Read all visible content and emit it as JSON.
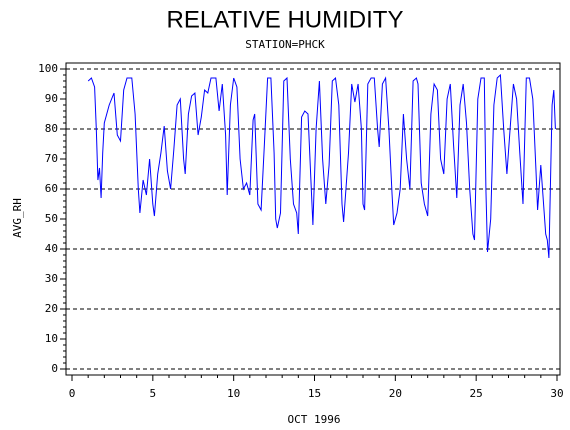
{
  "chart_data": {
    "type": "line",
    "title": "RELATIVE HUMIDITY",
    "subtitle": "STATION=PHCK",
    "x_label": "OCT 1996",
    "y_label": "AVG_RH",
    "x": [
      1.0,
      1.2,
      1.4,
      1.5,
      1.6,
      1.7,
      1.8,
      1.9,
      2.0,
      2.3,
      2.6,
      2.8,
      3.0,
      3.2,
      3.4,
      3.7,
      3.9,
      4.1,
      4.2,
      4.4,
      4.6,
      4.8,
      5.0,
      5.1,
      5.3,
      5.5,
      5.7,
      5.9,
      6.1,
      6.3,
      6.5,
      6.7,
      6.9,
      7.0,
      7.2,
      7.4,
      7.6,
      7.8,
      8.0,
      8.2,
      8.4,
      8.6,
      8.9,
      9.1,
      9.3,
      9.5,
      9.6,
      9.8,
      10.0,
      10.2,
      10.4,
      10.6,
      10.8,
      11.0,
      11.2,
      11.3,
      11.5,
      11.7,
      11.9,
      12.1,
      12.3,
      12.5,
      12.6,
      12.7,
      12.9,
      13.1,
      13.3,
      13.5,
      13.7,
      13.9,
      14.0,
      14.2,
      14.4,
      14.6,
      14.8,
      14.9,
      15.1,
      15.3,
      15.5,
      15.7,
      15.9,
      16.1,
      16.3,
      16.5,
      16.7,
      16.8,
      17.1,
      17.3,
      17.5,
      17.7,
      17.9,
      18.0,
      18.1,
      18.3,
      18.5,
      18.7,
      18.9,
      19.0,
      19.2,
      19.4,
      19.6,
      19.8,
      19.9,
      20.1,
      20.3,
      20.5,
      20.7,
      20.9,
      21.1,
      21.3,
      21.4,
      21.6,
      21.8,
      22.0,
      22.2,
      22.4,
      22.6,
      22.8,
      23.0,
      23.2,
      23.4,
      23.6,
      23.8,
      24.0,
      24.2,
      24.4,
      24.6,
      24.8,
      24.9,
      25.1,
      25.3,
      25.5,
      25.6,
      25.7,
      25.9,
      26.1,
      26.3,
      26.5,
      26.7,
      26.9,
      27.1,
      27.3,
      27.5,
      27.7,
      27.9,
      28.1,
      28.3,
      28.5,
      28.7,
      28.8,
      29.0,
      29.1,
      29.3,
      29.4,
      29.5,
      29.7,
      29.8,
      29.9
    ],
    "series": [
      {
        "name": "AVG_RH",
        "color": "#0000ff",
        "values": [
          96,
          97,
          94,
          80,
          63,
          67,
          57,
          72,
          82,
          88,
          92,
          78,
          76,
          93,
          97,
          97,
          85,
          60,
          52,
          63,
          58,
          70,
          55,
          51,
          65,
          72,
          81,
          66,
          60,
          73,
          88,
          90,
          70,
          65,
          85,
          91,
          92,
          78,
          84,
          93,
          92,
          97,
          97,
          86,
          95,
          78,
          58,
          88,
          97,
          94,
          70,
          60,
          62,
          58,
          83,
          85,
          55,
          53,
          75,
          97,
          97,
          72,
          50,
          47,
          52,
          96,
          97,
          70,
          55,
          52,
          45,
          84,
          86,
          85,
          60,
          48,
          80,
          96,
          70,
          55,
          68,
          96,
          97,
          88,
          55,
          49,
          72,
          95,
          89,
          95,
          80,
          55,
          53,
          95,
          97,
          97,
          80,
          74,
          95,
          97,
          80,
          58,
          48,
          52,
          60,
          85,
          70,
          60,
          96,
          97,
          95,
          62,
          55,
          51,
          85,
          95,
          93,
          70,
          65,
          90,
          95,
          75,
          57,
          88,
          95,
          82,
          60,
          45,
          43,
          90,
          97,
          97,
          60,
          39,
          50,
          88,
          97,
          98,
          80,
          65,
          80,
          95,
          90,
          72,
          55,
          97,
          97,
          90,
          66,
          53,
          68,
          60,
          45,
          43,
          37,
          88,
          93,
          80
        ]
      }
    ],
    "xlim": [
      0,
      30
    ],
    "xticks": [
      0,
      5,
      10,
      15,
      20,
      25,
      30
    ],
    "ylim": [
      0,
      100
    ],
    "yticks": [
      0,
      10,
      20,
      30,
      40,
      50,
      60,
      70,
      80,
      90,
      100
    ],
    "ygrid": [
      0,
      20,
      40,
      60,
      80,
      100
    ]
  }
}
